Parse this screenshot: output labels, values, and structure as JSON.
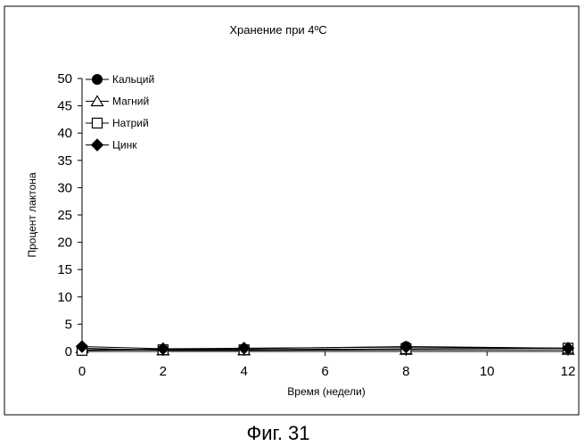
{
  "figure_caption": "Фиг. 31",
  "chart_data": {
    "type": "line",
    "title": "Хранение при 4ºC",
    "xlabel": "Время (недели)",
    "ylabel": "Процент лактона",
    "xlim": [
      0,
      12
    ],
    "ylim": [
      0,
      50
    ],
    "xticks": [
      0,
      2,
      4,
      6,
      8,
      10,
      12
    ],
    "yticks": [
      0,
      5,
      10,
      15,
      20,
      25,
      30,
      35,
      40,
      45,
      50
    ],
    "grid": false,
    "legend_position": "top-left",
    "x": [
      0,
      2,
      4,
      8,
      12
    ],
    "series": [
      {
        "name": "Кальций",
        "marker": "filled-circle",
        "values": [
          0.3,
          0.4,
          0.5,
          0.9,
          0.6
        ]
      },
      {
        "name": "Магний",
        "marker": "open-triangle",
        "values": [
          0.6,
          0.2,
          0.2,
          0.3,
          0.3
        ]
      },
      {
        "name": "Натрий",
        "marker": "open-square",
        "values": [
          0.2,
          0.3,
          0.3,
          0.5,
          0.6
        ]
      },
      {
        "name": "Цинк",
        "marker": "filled-diamond",
        "values": [
          0.9,
          0.5,
          0.6,
          0.8,
          0.6
        ]
      }
    ]
  }
}
